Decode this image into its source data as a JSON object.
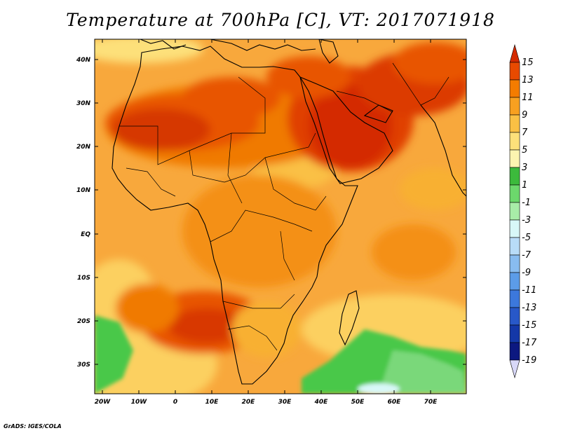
{
  "title": "Temperature at 700hPa [C], VT: 2017071918",
  "credit": "GrADS: IGES/COLA",
  "map": {
    "lat_labels": [
      "40N",
      "30N",
      "20N",
      "10N",
      "EQ",
      "10S",
      "20S",
      "30S"
    ],
    "lon_labels": [
      "20W",
      "10W",
      "0",
      "10E",
      "20E",
      "30E",
      "40E",
      "50E",
      "60E",
      "70E"
    ]
  },
  "colorbar": {
    "labels": [
      "15",
      "13",
      "11",
      "9",
      "7",
      "5",
      "3",
      "1",
      "-1",
      "-3",
      "-5",
      "-7",
      "-9",
      "-11",
      "-13",
      "-15",
      "-17",
      "-19"
    ],
    "colors": [
      "#d42a00",
      "#e84a00",
      "#f47c00",
      "#f8a020",
      "#fac044",
      "#fde07a",
      "#fcf4b0",
      "#3cba3c",
      "#6cd86c",
      "#a8eca8",
      "#d8f8f8",
      "#b8dcf8",
      "#88bcf0",
      "#5c9ce8",
      "#3c78dc",
      "#2858c8",
      "#1438a8",
      "#0c1880",
      "#d8d8f8"
    ]
  },
  "colors": {
    "ocean_base": "#f8a83c",
    "warm_hot": "#d42a00",
    "green_cold": "#48c848"
  }
}
